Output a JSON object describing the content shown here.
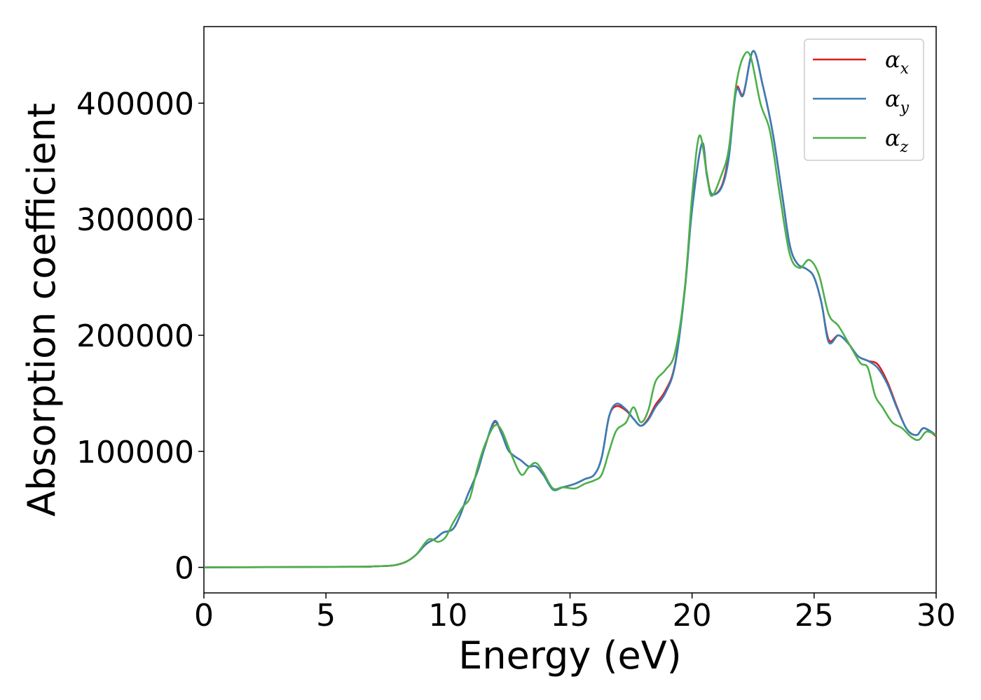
{
  "chart_data": {
    "type": "line",
    "xlabel": "Energy (eV)",
    "ylabel": "Absorption coefficient",
    "xlim": [
      0,
      30
    ],
    "ylim": [
      -22000,
      466000
    ],
    "x_ticks": [
      0,
      5,
      10,
      15,
      20,
      25,
      30
    ],
    "y_ticks": [
      0,
      100000,
      200000,
      300000,
      400000
    ],
    "grid": false,
    "legend_position": "top-right",
    "series": [
      {
        "name": "αx",
        "name_base": "α",
        "name_sub": "x",
        "color": "#e41a1c",
        "points": [
          [
            0,
            0
          ],
          [
            6,
            500
          ],
          [
            7,
            900
          ],
          [
            7.8,
            1800
          ],
          [
            8.3,
            5000
          ],
          [
            8.7,
            11000
          ],
          [
            9.1,
            20000
          ],
          [
            9.5,
            25000
          ],
          [
            9.8,
            30000
          ],
          [
            10.2,
            33000
          ],
          [
            10.5,
            45000
          ],
          [
            10.8,
            62000
          ],
          [
            11.2,
            82000
          ],
          [
            11.5,
            103000
          ],
          [
            11.9,
            125000
          ],
          [
            12.2,
            115000
          ],
          [
            12.5,
            100000
          ],
          [
            13.0,
            92000
          ],
          [
            13.3,
            87000
          ],
          [
            13.6,
            87000
          ],
          [
            13.9,
            80000
          ],
          [
            14.3,
            68000
          ],
          [
            14.7,
            69000
          ],
          [
            15.2,
            72000
          ],
          [
            15.6,
            76000
          ],
          [
            16.0,
            80000
          ],
          [
            16.3,
            95000
          ],
          [
            16.6,
            130000
          ],
          [
            16.9,
            139000
          ],
          [
            17.3,
            135000
          ],
          [
            17.6,
            128000
          ],
          [
            17.9,
            122000
          ],
          [
            18.2,
            128000
          ],
          [
            18.5,
            140000
          ],
          [
            18.9,
            152000
          ],
          [
            19.3,
            175000
          ],
          [
            19.7,
            240000
          ],
          [
            20.0,
            310000
          ],
          [
            20.4,
            365000
          ],
          [
            20.6,
            340000
          ],
          [
            20.8,
            322000
          ],
          [
            21.2,
            328000
          ],
          [
            21.5,
            355000
          ],
          [
            21.8,
            412000
          ],
          [
            22.1,
            408000
          ],
          [
            22.5,
            445000
          ],
          [
            22.9,
            415000
          ],
          [
            23.3,
            375000
          ],
          [
            23.7,
            320000
          ],
          [
            24.0,
            278000
          ],
          [
            24.3,
            262000
          ],
          [
            24.7,
            257000
          ],
          [
            25.0,
            250000
          ],
          [
            25.3,
            228000
          ],
          [
            25.6,
            196000
          ],
          [
            26.0,
            200000
          ],
          [
            26.4,
            193000
          ],
          [
            26.8,
            182000
          ],
          [
            27.2,
            178000
          ],
          [
            27.6,
            175000
          ],
          [
            28.0,
            160000
          ],
          [
            28.4,
            138000
          ],
          [
            28.8,
            119000
          ],
          [
            29.2,
            114000
          ],
          [
            29.5,
            120000
          ],
          [
            30.0,
            113000
          ]
        ]
      },
      {
        "name": "αy",
        "name_base": "α",
        "name_sub": "y",
        "color": "#377eb8",
        "points": [
          [
            0,
            0
          ],
          [
            6,
            500
          ],
          [
            7,
            900
          ],
          [
            7.8,
            1800
          ],
          [
            8.3,
            5000
          ],
          [
            8.7,
            11000
          ],
          [
            9.1,
            20000
          ],
          [
            9.5,
            25000
          ],
          [
            9.8,
            30000
          ],
          [
            10.2,
            33000
          ],
          [
            10.5,
            45000
          ],
          [
            10.8,
            62000
          ],
          [
            11.2,
            82000
          ],
          [
            11.5,
            103000
          ],
          [
            11.9,
            126000
          ],
          [
            12.2,
            115000
          ],
          [
            12.5,
            100000
          ],
          [
            13.0,
            92000
          ],
          [
            13.3,
            87000
          ],
          [
            13.6,
            87000
          ],
          [
            13.9,
            80000
          ],
          [
            14.3,
            67000
          ],
          [
            14.7,
            69000
          ],
          [
            15.2,
            72000
          ],
          [
            15.6,
            76000
          ],
          [
            16.0,
            80000
          ],
          [
            16.3,
            95000
          ],
          [
            16.6,
            130000
          ],
          [
            16.9,
            141000
          ],
          [
            17.3,
            136000
          ],
          [
            17.6,
            128000
          ],
          [
            17.9,
            122000
          ],
          [
            18.2,
            127000
          ],
          [
            18.5,
            138000
          ],
          [
            18.9,
            150000
          ],
          [
            19.3,
            174000
          ],
          [
            19.7,
            238000
          ],
          [
            20.0,
            308000
          ],
          [
            20.4,
            365000
          ],
          [
            20.6,
            338000
          ],
          [
            20.8,
            322000
          ],
          [
            21.2,
            327000
          ],
          [
            21.5,
            352000
          ],
          [
            21.8,
            410000
          ],
          [
            22.1,
            407000
          ],
          [
            22.5,
            445000
          ],
          [
            22.9,
            415000
          ],
          [
            23.3,
            375000
          ],
          [
            23.7,
            320000
          ],
          [
            24.0,
            278000
          ],
          [
            24.3,
            262000
          ],
          [
            24.7,
            257000
          ],
          [
            25.0,
            250000
          ],
          [
            25.3,
            228000
          ],
          [
            25.6,
            194000
          ],
          [
            26.0,
            200000
          ],
          [
            26.4,
            193000
          ],
          [
            26.8,
            182000
          ],
          [
            27.2,
            178000
          ],
          [
            27.6,
            172000
          ],
          [
            28.0,
            158000
          ],
          [
            28.4,
            137000
          ],
          [
            28.8,
            119000
          ],
          [
            29.2,
            114000
          ],
          [
            29.5,
            120000
          ],
          [
            30.0,
            114000
          ]
        ]
      },
      {
        "name": "αz",
        "name_base": "α",
        "name_sub": "z",
        "color": "#4daf4a",
        "points": [
          [
            0,
            0
          ],
          [
            6,
            500
          ],
          [
            7,
            900
          ],
          [
            7.8,
            1800
          ],
          [
            8.3,
            5000
          ],
          [
            8.7,
            11000
          ],
          [
            9.2,
            24000
          ],
          [
            9.6,
            22000
          ],
          [
            9.9,
            26000
          ],
          [
            10.2,
            38000
          ],
          [
            10.6,
            52000
          ],
          [
            10.9,
            60000
          ],
          [
            11.2,
            85000
          ],
          [
            11.5,
            105000
          ],
          [
            11.9,
            122000
          ],
          [
            12.2,
            118000
          ],
          [
            12.6,
            97000
          ],
          [
            13.0,
            80000
          ],
          [
            13.3,
            86000
          ],
          [
            13.6,
            90000
          ],
          [
            13.9,
            82000
          ],
          [
            14.3,
            68000
          ],
          [
            14.7,
            69000
          ],
          [
            15.2,
            68000
          ],
          [
            15.6,
            72000
          ],
          [
            16.0,
            75000
          ],
          [
            16.3,
            80000
          ],
          [
            16.6,
            100000
          ],
          [
            16.9,
            118000
          ],
          [
            17.3,
            125000
          ],
          [
            17.6,
            138000
          ],
          [
            17.9,
            125000
          ],
          [
            18.2,
            135000
          ],
          [
            18.5,
            160000
          ],
          [
            18.9,
            170000
          ],
          [
            19.3,
            185000
          ],
          [
            19.7,
            240000
          ],
          [
            20.0,
            320000
          ],
          [
            20.3,
            372000
          ],
          [
            20.6,
            340000
          ],
          [
            20.8,
            320000
          ],
          [
            21.2,
            338000
          ],
          [
            21.5,
            360000
          ],
          [
            21.8,
            415000
          ],
          [
            22.1,
            440000
          ],
          [
            22.4,
            440000
          ],
          [
            22.8,
            400000
          ],
          [
            23.2,
            375000
          ],
          [
            23.6,
            320000
          ],
          [
            24.0,
            270000
          ],
          [
            24.4,
            258000
          ],
          [
            24.8,
            265000
          ],
          [
            25.2,
            252000
          ],
          [
            25.6,
            218000
          ],
          [
            26.0,
            208000
          ],
          [
            26.5,
            190000
          ],
          [
            26.9,
            176000
          ],
          [
            27.2,
            172000
          ],
          [
            27.5,
            148000
          ],
          [
            27.8,
            138000
          ],
          [
            28.2,
            125000
          ],
          [
            28.6,
            120000
          ],
          [
            29.0,
            112000
          ],
          [
            29.3,
            110000
          ],
          [
            29.6,
            117000
          ],
          [
            30.0,
            114000
          ]
        ]
      }
    ]
  }
}
